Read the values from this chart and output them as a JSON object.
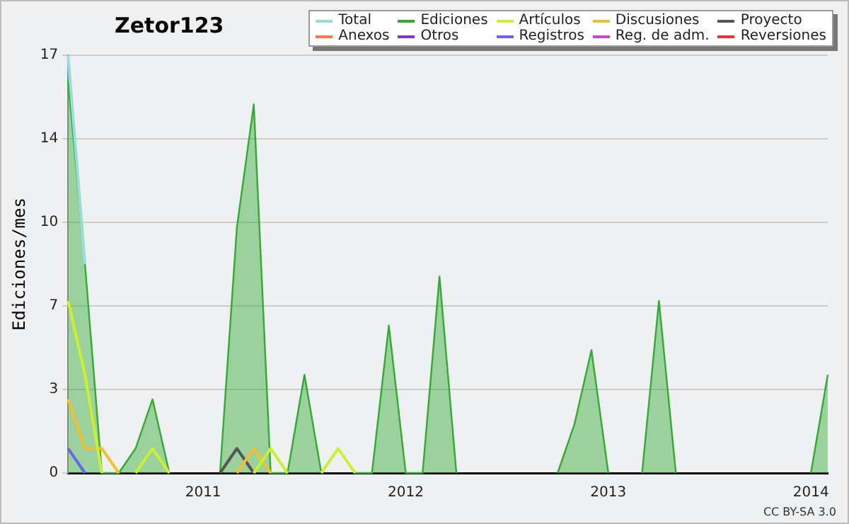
{
  "chart_data": {
    "type": "line",
    "title": "Zetor123",
    "ylabel": "Ediciones/mes",
    "categories": [
      null,
      null,
      null,
      null,
      null,
      null,
      null,
      null,
      "2011",
      null,
      null,
      null,
      null,
      null,
      null,
      null,
      null,
      null,
      null,
      null,
      "2012",
      null,
      null,
      null,
      null,
      null,
      null,
      null,
      null,
      null,
      null,
      null,
      "2013",
      null,
      null,
      null,
      null,
      null,
      null,
      null,
      null,
      null,
      null,
      null,
      "2014",
      null
    ],
    "series": [
      {
        "name": "Total",
        "color": "#99dddd",
        "values": [
          17,
          8.5,
          null,
          null,
          null,
          null,
          null,
          null,
          null,
          null,
          null,
          null,
          null,
          null,
          null,
          null,
          null,
          null,
          null,
          null,
          null,
          null,
          null,
          null,
          null,
          null,
          null,
          null,
          null,
          null,
          null,
          null,
          null,
          null,
          null,
          null,
          null,
          null,
          null,
          null,
          null,
          null,
          null,
          null,
          null,
          null
        ]
      },
      {
        "name": "Ediciones",
        "type": "area",
        "color": "#33aa33",
        "values": [
          16,
          8.5,
          0,
          0,
          1,
          3,
          0,
          null,
          null,
          0,
          10,
          15,
          0,
          0,
          4,
          0,
          null,
          0,
          0,
          6,
          0,
          0,
          8,
          0,
          null,
          null,
          null,
          null,
          null,
          0,
          2,
          5,
          0,
          null,
          0,
          7,
          0,
          null,
          null,
          null,
          null,
          null,
          null,
          null,
          0,
          4
        ]
      },
      {
        "name": "Artículos",
        "color": "#ccee33",
        "values": [
          7,
          4,
          0,
          null,
          0,
          1,
          0,
          null,
          null,
          null,
          null,
          0,
          1,
          0,
          null,
          0,
          1,
          0,
          null,
          null,
          null,
          null,
          null,
          null,
          null,
          null,
          null,
          null,
          null,
          null,
          null,
          null,
          null,
          null,
          null,
          null,
          null,
          null,
          null,
          null,
          null,
          null,
          null,
          null,
          null,
          null
        ]
      },
      {
        "name": "Discusiones",
        "color": "#f0c030",
        "values": [
          3,
          1,
          1,
          0,
          null,
          null,
          null,
          null,
          null,
          null,
          0,
          1,
          0,
          null,
          null,
          null,
          null,
          null,
          null,
          null,
          null,
          null,
          null,
          null,
          null,
          null,
          null,
          null,
          null,
          null,
          null,
          null,
          null,
          null,
          null,
          null,
          null,
          null,
          null,
          null,
          null,
          null,
          null,
          null,
          null,
          null
        ]
      },
      {
        "name": "Proyecto",
        "color": "#555555",
        "values": [
          null,
          null,
          null,
          null,
          null,
          null,
          null,
          null,
          null,
          0,
          1,
          0,
          null,
          null,
          null,
          null,
          null,
          null,
          null,
          null,
          null,
          null,
          null,
          null,
          null,
          null,
          null,
          null,
          null,
          null,
          null,
          null,
          null,
          null,
          null,
          null,
          null,
          null,
          null,
          null,
          null,
          null,
          null,
          null,
          null,
          null
        ]
      },
      {
        "name": "Anexos",
        "color": "#ff7744",
        "values": [
          null,
          null,
          null,
          null,
          null,
          null,
          null,
          null,
          null,
          null,
          null,
          null,
          null,
          null,
          null,
          null,
          null,
          null,
          null,
          null,
          null,
          null,
          null,
          null,
          null,
          null,
          null,
          null,
          null,
          null,
          null,
          null,
          null,
          null,
          null,
          null,
          null,
          null,
          null,
          null,
          null,
          null,
          null,
          null,
          null,
          null
        ]
      },
      {
        "name": "Otros",
        "color": "#8833cc",
        "values": [
          null,
          null,
          null,
          null,
          null,
          null,
          null,
          null,
          null,
          null,
          null,
          null,
          null,
          null,
          null,
          null,
          null,
          null,
          null,
          null,
          null,
          null,
          null,
          null,
          null,
          null,
          null,
          null,
          null,
          null,
          null,
          null,
          null,
          null,
          null,
          null,
          null,
          null,
          null,
          null,
          null,
          null,
          null,
          null,
          null,
          null
        ]
      },
      {
        "name": "Registros",
        "color": "#6666ee",
        "values": [
          1,
          0,
          null,
          null,
          null,
          null,
          null,
          null,
          null,
          null,
          null,
          null,
          null,
          null,
          null,
          null,
          null,
          null,
          null,
          null,
          null,
          null,
          null,
          null,
          null,
          null,
          null,
          null,
          null,
          null,
          null,
          null,
          null,
          null,
          null,
          null,
          null,
          null,
          null,
          null,
          null,
          null,
          null,
          null,
          null,
          null
        ]
      },
      {
        "name": "Reg. de adm.",
        "color": "#cc44cc",
        "values": [
          null,
          null,
          null,
          null,
          null,
          null,
          null,
          null,
          null,
          null,
          null,
          null,
          null,
          null,
          null,
          null,
          null,
          null,
          null,
          null,
          null,
          null,
          null,
          null,
          null,
          null,
          null,
          null,
          null,
          null,
          null,
          null,
          null,
          null,
          null,
          null,
          null,
          null,
          null,
          null,
          null,
          null,
          null,
          null,
          null,
          null
        ]
      },
      {
        "name": "Reversiones",
        "color": "#ee3333",
        "values": [
          null,
          null,
          null,
          null,
          null,
          null,
          null,
          null,
          null,
          null,
          null,
          null,
          null,
          null,
          null,
          null,
          null,
          null,
          null,
          null,
          null,
          null,
          null,
          null,
          null,
          null,
          null,
          null,
          null,
          null,
          null,
          null,
          null,
          null,
          null,
          null,
          null,
          null,
          null,
          null,
          null,
          null,
          null,
          null,
          null,
          null
        ]
      }
    ],
    "ylim": [
      0,
      17
    ],
    "yticks": [
      0,
      {
        "value": 3.4,
        "label": "3"
      },
      {
        "value": 6.8,
        "label": "7"
      },
      {
        "value": 10.2,
        "label": "10"
      },
      {
        "value": 13.6,
        "label": "14"
      },
      17
    ],
    "grid": "y",
    "legend": "top right",
    "marker": "none",
    "line_style": "solid",
    "annotations": [
      "CC BY-SA 3.0"
    ]
  }
}
